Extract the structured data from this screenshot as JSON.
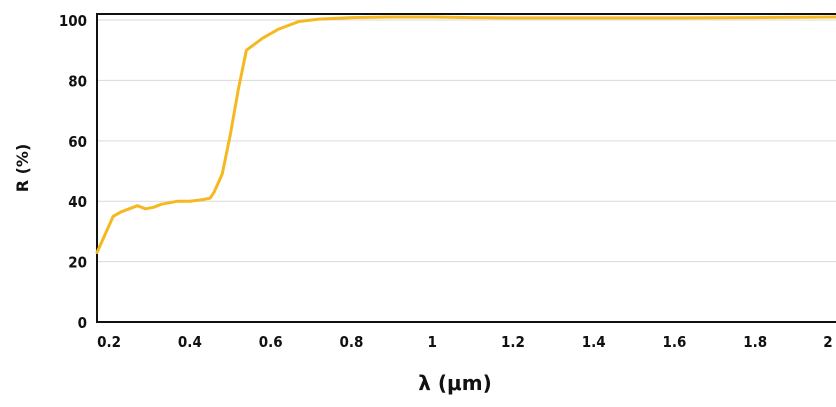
{
  "chart_data": {
    "type": "line",
    "title": "",
    "xlabel": "λ (μm)",
    "ylabel": "R (%)",
    "xlim": [
      0.17,
      2.0
    ],
    "ylim": [
      0,
      102
    ],
    "grid": true,
    "x_ticks": [
      0.2,
      0.4,
      0.6,
      0.8,
      1,
      1.2,
      1.4,
      1.6,
      1.8,
      2
    ],
    "x_tick_labels": [
      "0.2",
      "0.4",
      "0.6",
      "0.8",
      "1",
      "1.2",
      "1.4",
      "1.6",
      "1.8",
      "2"
    ],
    "y_ticks": [
      0,
      20,
      40,
      60,
      80,
      100
    ],
    "y_tick_labels": [
      "0",
      "20",
      "40",
      "60",
      "80",
      "100"
    ],
    "series": [
      {
        "color": "#f5b820",
        "x": [
          0.17,
          0.19,
          0.21,
          0.23,
          0.25,
          0.27,
          0.29,
          0.31,
          0.33,
          0.35,
          0.37,
          0.4,
          0.43,
          0.45,
          0.46,
          0.48,
          0.5,
          0.52,
          0.54,
          0.58,
          0.62,
          0.67,
          0.72,
          0.8,
          0.9,
          1.0,
          1.1,
          1.2,
          1.4,
          1.6,
          1.8,
          2.0
        ],
        "y": [
          23,
          29,
          35,
          36.5,
          37.5,
          38.5,
          37.5,
          38,
          39,
          39.5,
          40,
          40,
          40.5,
          41,
          43,
          49,
          62,
          77,
          90,
          94,
          97,
          99.5,
          100.3,
          100.8,
          101,
          101,
          100.8,
          100.7,
          100.7,
          100.7,
          100.8,
          101
        ]
      }
    ]
  }
}
